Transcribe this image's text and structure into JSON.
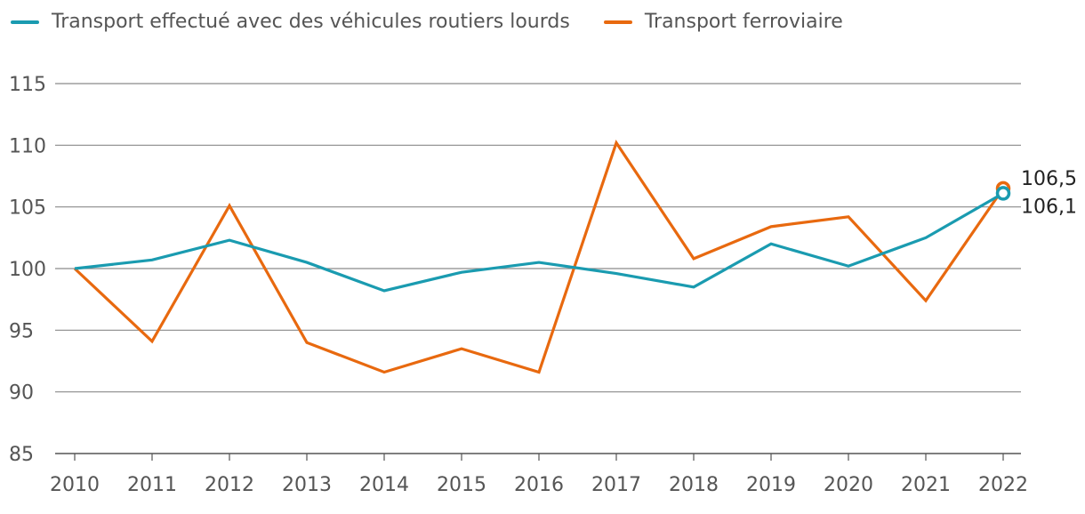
{
  "chart_data": {
    "type": "line",
    "title": "",
    "xlabel": "",
    "ylabel": "",
    "x": [
      "2010",
      "2011",
      "2012",
      "2013",
      "2014",
      "2015",
      "2016",
      "2017",
      "2018",
      "2019",
      "2020",
      "2021",
      "2022"
    ],
    "ylim": [
      85,
      115
    ],
    "yticks": [
      85,
      90,
      95,
      100,
      105,
      110,
      115
    ],
    "grid": true,
    "legend_position": "top-left",
    "series": [
      {
        "name": "Transport effectué avec des véhicules routiers lourds",
        "color": "#1a9bb0",
        "values": [
          100.0,
          100.7,
          102.3,
          100.5,
          98.2,
          99.7,
          100.5,
          99.6,
          98.5,
          102.0,
          100.2,
          102.5,
          106.1
        ],
        "end_label": "106,1"
      },
      {
        "name": "Transport ferroviaire",
        "color": "#e8690f",
        "values": [
          100.0,
          94.1,
          105.1,
          94.0,
          91.6,
          93.5,
          91.6,
          110.2,
          100.8,
          103.4,
          104.2,
          97.4,
          106.5
        ],
        "end_label": "106,5"
      }
    ]
  }
}
